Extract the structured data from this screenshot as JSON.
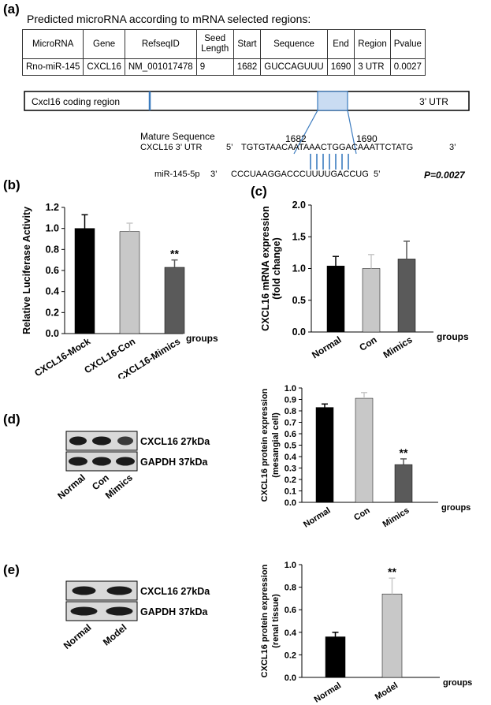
{
  "panel_a": {
    "letter": "(a)",
    "caption": "Predicted microRNA according to mRNA selected regions:",
    "table": {
      "headers": [
        "MicroRNA",
        "Gene",
        "RefseqID",
        "Seed Length",
        "Start",
        "Sequence",
        "End",
        "Region",
        "Pvalue"
      ],
      "rows": [
        [
          "Rno-miR-145",
          "CXCL16",
          "NM_001017478",
          "9",
          "1682",
          "GUCCAGUUU",
          "1690",
          "3 UTR",
          "0.0027"
        ]
      ]
    },
    "gene_map": {
      "coding_label": "Cxcl16 coding region",
      "utr_label": "3’ UTR",
      "start": "1682",
      "end": "1690"
    },
    "alignment": {
      "title": "Mature Sequence",
      "utr_label": "CXCL16 3’ UTR",
      "utr_5": "5’",
      "utr_seq": "TGTGTAACAATAAACTGGACAAATTCTATG",
      "utr_3": "3’",
      "mir_label": "miR-145-5p",
      "mir_3": "3’",
      "mir_seq": "CCCUAAGGACCCUUUUGACCUG",
      "mir_5": "5’",
      "pvalue": "P=0.0027"
    }
  },
  "panel_b": {
    "letter": "(b)"
  },
  "panel_c": {
    "letter": "(c)"
  },
  "panel_d": {
    "letter": "(d)",
    "blot": {
      "band1": "CXCL16 27kDa",
      "band2": "GAPDH 37kDa",
      "lanes": [
        "Normal",
        "Con",
        "Mimics"
      ]
    }
  },
  "panel_e": {
    "letter": "(e)",
    "blot": {
      "band1": "CXCL16 27kDa",
      "band2": "GAPDH 37kDa",
      "lanes": [
        "Normal",
        "Model"
      ]
    }
  },
  "chart_data": [
    {
      "id": "b",
      "type": "bar",
      "categories": [
        "CXCL16-Mock",
        "CXCL16-Con",
        "CXCL16-Mimics"
      ],
      "values": [
        1.0,
        0.97,
        0.63
      ],
      "errors": [
        0.13,
        0.08,
        0.07
      ],
      "colors": [
        "#000000",
        "#c8c8c8",
        "#5a5a5a"
      ],
      "annotations": [
        "",
        "",
        "**"
      ],
      "ylabel": "Relative Luciferase Activity",
      "xlabel": "groups",
      "ylim": [
        0,
        1.2
      ],
      "yticks": [
        "0.0",
        "0.2",
        "0.4",
        "0.6",
        "0.8",
        "1.0",
        "1.2"
      ]
    },
    {
      "id": "c",
      "type": "bar",
      "categories": [
        "Normal",
        "Con",
        "Mimics"
      ],
      "values": [
        1.04,
        1.0,
        1.15
      ],
      "errors": [
        0.15,
        0.22,
        0.28
      ],
      "colors": [
        "#000000",
        "#c8c8c8",
        "#5a5a5a"
      ],
      "annotations": [
        "",
        "",
        ""
      ],
      "ylabel": "CXCL16 mRNA expression",
      "ylabel2": "(fold change)",
      "xlabel": "groups",
      "ylim": [
        0,
        2.0
      ],
      "yticks": [
        "0.0",
        "0.5",
        "1.0",
        "1.5",
        "2.0"
      ]
    },
    {
      "id": "d",
      "type": "bar",
      "categories": [
        "Normal",
        "Con",
        "Mimics"
      ],
      "values": [
        0.83,
        0.91,
        0.33
      ],
      "errors": [
        0.03,
        0.05,
        0.05
      ],
      "colors": [
        "#000000",
        "#c8c8c8",
        "#5a5a5a"
      ],
      "annotations": [
        "",
        "",
        "**"
      ],
      "ylabel": "CXCL16 protein expression",
      "ylabel2": "(mesangial cell)",
      "xlabel": "groups",
      "ylim": [
        0,
        1.0
      ],
      "yticks": [
        "0.0",
        "0.1",
        "0.2",
        "0.3",
        "0.4",
        "0.5",
        "0.6",
        "0.7",
        "0.8",
        "0.9",
        "1.0"
      ]
    },
    {
      "id": "e",
      "type": "bar",
      "categories": [
        "Normal",
        "Model"
      ],
      "values": [
        0.36,
        0.74
      ],
      "errors": [
        0.04,
        0.14
      ],
      "colors": [
        "#000000",
        "#c8c8c8"
      ],
      "annotations": [
        "",
        "**"
      ],
      "ylabel": "CXCL16 protein expression",
      "ylabel2": "(renal tissue)",
      "xlabel": "groups",
      "ylim": [
        0,
        1.0
      ],
      "yticks": [
        "0.0",
        "0.2",
        "0.4",
        "0.6",
        "0.8",
        "1.0"
      ]
    }
  ]
}
